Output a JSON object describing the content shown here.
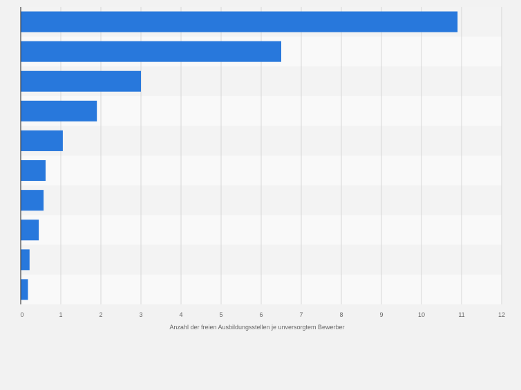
{
  "chart_data": {
    "type": "bar",
    "orientation": "horizontal",
    "categories": [
      "",
      "",
      "",
      "",
      "",
      "",
      "",
      "",
      "",
      ""
    ],
    "values": [
      10.9,
      6.5,
      3.0,
      1.9,
      1.05,
      0.62,
      0.57,
      0.45,
      0.22,
      0.18
    ],
    "title": "",
    "xlabel": "Anzahl der freien Ausbildungsstellen je unversorgtem Bewerber",
    "ylabel": "",
    "xlim": [
      0,
      12
    ],
    "xticks": [
      "0",
      "1",
      "2",
      "3",
      "4",
      "5",
      "6",
      "7",
      "8",
      "9",
      "10",
      "11",
      "12"
    ],
    "grid": "vertical",
    "legend": "none",
    "colors": {
      "bar": "#2878dc",
      "plot_band_odd": "#f3f3f3",
      "plot_band_even": "#f9f9f9",
      "gridline": "#d7d7d7",
      "axis": "#444444",
      "text": "#666666",
      "background": "#f2f2f2"
    }
  }
}
